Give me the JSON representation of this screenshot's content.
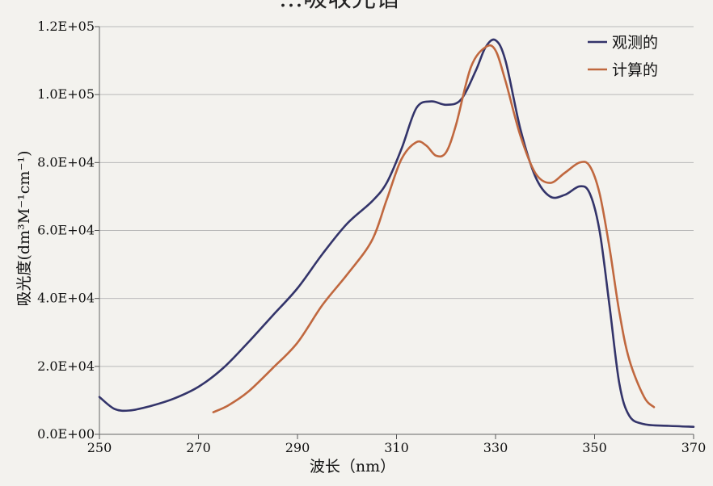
{
  "chart_data": {
    "type": "line",
    "title": "…吸收光谱",
    "xlabel": "波长（nm）",
    "ylabel": "吸光度(dm³M⁻¹cm⁻¹)",
    "xlim": [
      250,
      370
    ],
    "ylim": [
      0,
      120000
    ],
    "x_ticks": [
      "250",
      "270",
      "290",
      "310",
      "330",
      "350",
      "370"
    ],
    "y_ticks": [
      "0.0E+00",
      "2.0E+04",
      "4.0E+04",
      "6.0E+04",
      "8.0E+04",
      "1.0E+05",
      "1.2E+05"
    ],
    "grid": "horizontal",
    "legend_position": "top-right",
    "series": [
      {
        "name": "观测的",
        "color": "#33346a",
        "x": [
          250,
          253,
          256,
          260,
          265,
          270,
          275,
          280,
          285,
          290,
          295,
          300,
          305,
          308,
          311,
          314,
          317,
          320,
          323,
          326,
          328,
          330,
          332,
          335,
          338,
          341,
          344,
          347,
          349,
          351,
          353,
          355,
          357,
          360,
          365,
          370
        ],
        "y": [
          11000,
          7500,
          7000,
          8200,
          10500,
          14000,
          19500,
          27000,
          35000,
          43000,
          53000,
          62000,
          68500,
          74000,
          84000,
          96000,
          98000,
          97000,
          98500,
          107000,
          114000,
          116000,
          110000,
          90000,
          76000,
          70000,
          70500,
          73000,
          71000,
          60000,
          38000,
          15000,
          5500,
          3000,
          2500,
          2200
        ]
      },
      {
        "name": "计算的",
        "color": "#c0683f",
        "x": [
          273,
          276,
          280,
          285,
          290,
          295,
          300,
          305,
          308,
          311,
          314,
          316,
          318,
          320,
          322,
          325,
          328,
          330,
          332,
          335,
          338,
          341,
          344,
          347,
          349,
          351,
          353,
          355,
          357,
          360,
          362
        ],
        "y": [
          6500,
          8500,
          12500,
          19500,
          27000,
          38000,
          47000,
          57000,
          69000,
          81000,
          86000,
          85000,
          82000,
          83000,
          91000,
          108000,
          114000,
          113000,
          104000,
          88000,
          77000,
          74000,
          77000,
          80000,
          79000,
          71000,
          55000,
          36000,
          22000,
          11000,
          8000
        ]
      }
    ]
  }
}
